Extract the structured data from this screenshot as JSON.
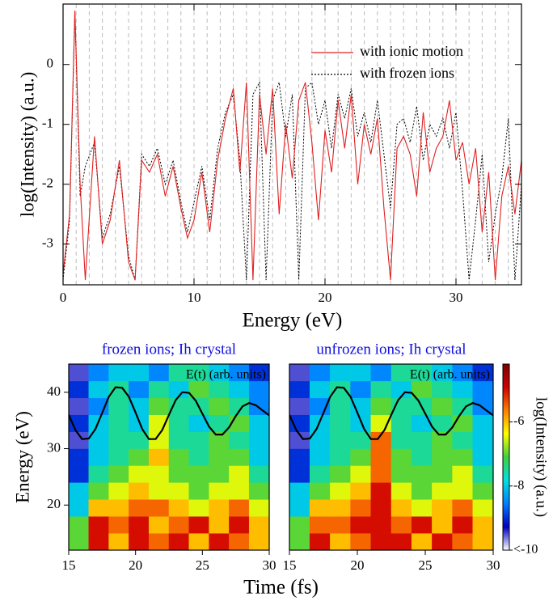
{
  "chart_data": [
    {
      "type": "line",
      "ylabel": "log(Intensity) (a.u.)",
      "xlabel": "Energy (eV)",
      "xlim": [
        0,
        35
      ],
      "ylim": [
        -3.68,
        1.01
      ],
      "xticks": [
        0,
        10,
        20,
        30
      ],
      "yticks": [
        -3,
        -2,
        -1,
        0
      ],
      "xgrid": [
        1,
        2,
        3,
        4,
        5,
        6,
        7,
        8,
        9,
        10,
        11,
        12,
        13,
        14,
        15,
        16,
        17,
        18,
        19,
        20,
        21,
        22,
        23,
        24,
        25,
        26,
        27,
        28,
        29,
        30,
        31,
        32,
        33,
        34
      ],
      "legend": "upper right",
      "x": [
        0,
        0.5,
        0.9,
        1.3,
        1.7,
        2.4,
        3,
        3.6,
        4.3,
        5,
        5.5,
        6,
        6.6,
        7.2,
        7.8,
        8.4,
        9,
        9.5,
        10,
        10.6,
        11.2,
        11.8,
        12.4,
        13,
        13.5,
        14,
        14.5,
        15,
        15.5,
        16,
        16.5,
        17,
        17.5,
        18,
        18.5,
        19,
        19.5,
        20,
        20.5,
        21,
        21.5,
        22,
        22.5,
        23,
        23.5,
        24,
        24.5,
        25,
        25.5,
        26,
        26.5,
        27,
        27.5,
        28,
        28.5,
        29,
        29.5,
        30,
        30.5,
        31,
        31.5,
        32,
        32.5,
        33,
        33.5,
        34,
        34.5,
        35
      ],
      "series": [
        {
          "name": "with ionic motion",
          "color": "#e02020",
          "dash": "none",
          "values": [
            -3.5,
            -2.5,
            0.9,
            -2.0,
            -3.6,
            -1.2,
            -3.0,
            -2.6,
            -1.6,
            -3.3,
            -3.6,
            -1.6,
            -1.8,
            -1.5,
            -2.2,
            -1.7,
            -2.4,
            -2.9,
            -2.6,
            -1.8,
            -2.8,
            -1.6,
            -0.9,
            -0.4,
            -1.8,
            -0.3,
            -3.6,
            -0.5,
            -1.5,
            -0.4,
            -2.5,
            -1.0,
            -1.9,
            -0.6,
            -0.3,
            -1.3,
            -2.6,
            -1.1,
            -1.8,
            -0.6,
            -1.4,
            -0.5,
            -2.0,
            -1.0,
            -1.5,
            -0.9,
            -2.4,
            -3.6,
            -1.4,
            -1.2,
            -1.5,
            -2.2,
            -0.8,
            -1.8,
            -1.4,
            -1.2,
            -0.6,
            -1.6,
            -1.3,
            -2.0,
            -1.4,
            -2.8,
            -1.8,
            -3.6,
            -2.2,
            -1.7,
            -2.5,
            -1.6
          ]
        },
        {
          "name": "with frozen ions",
          "color": "#000000",
          "dash": "2 2",
          "values": [
            -3.6,
            -2.6,
            0.85,
            -2.2,
            -1.7,
            -1.3,
            -2.9,
            -2.5,
            -1.7,
            -3.2,
            -3.6,
            -1.5,
            -1.7,
            -1.4,
            -2.0,
            -1.6,
            -2.3,
            -2.8,
            -2.3,
            -1.7,
            -2.6,
            -1.4,
            -0.8,
            -0.5,
            -1.6,
            -3.6,
            -0.5,
            -0.3,
            -3.6,
            -0.6,
            -0.3,
            -1.2,
            -0.5,
            -3.6,
            -0.4,
            -0.3,
            -1.0,
            -0.6,
            -1.4,
            -0.5,
            -0.9,
            -0.4,
            -1.2,
            -0.8,
            -1.3,
            -0.6,
            -1.5,
            -2.4,
            -1.0,
            -0.9,
            -1.3,
            -0.7,
            -1.6,
            -1.0,
            -1.2,
            -0.9,
            -1.4,
            -0.8,
            -2.1,
            -3.6,
            -2.6,
            -1.5,
            -3.3,
            -2.5,
            -1.9,
            -0.9,
            -3.6,
            -2.0
          ]
        }
      ]
    },
    {
      "type": "heatmap",
      "title": "frozen ions; Ih crystal",
      "xlabel": "Time (fs)",
      "ylabel": "Energy (eV)",
      "xlim": [
        15,
        30
      ],
      "ylim": [
        12,
        45
      ],
      "xticks": [
        15,
        20,
        25,
        30
      ],
      "yticks": [
        20,
        30,
        40
      ],
      "xbins": [
        15,
        16.5,
        18,
        19.5,
        21,
        22.5,
        24,
        25.5,
        27,
        28.5,
        30
      ],
      "ybins": [
        12,
        15,
        18,
        21,
        24,
        27,
        30,
        33,
        36,
        39,
        42,
        45
      ],
      "z": [
        [
          -7,
          -5,
          -6,
          -5,
          -5.5,
          -5,
          -6,
          -5,
          -5.5,
          -6
        ],
        [
          -7,
          -5,
          -5.5,
          -5,
          -6,
          -5.5,
          -5,
          -6,
          -5,
          -6
        ],
        [
          -8,
          -6,
          -6,
          -5.5,
          -5.5,
          -6,
          -6.5,
          -6,
          -5.5,
          -6.5
        ],
        [
          -8,
          -7,
          -6.5,
          -6,
          -6.5,
          -6.5,
          -7,
          -6.5,
          -6.5,
          -7
        ],
        [
          -9,
          -7.5,
          -7,
          -6.5,
          -6.5,
          -7,
          -7,
          -7,
          -6.5,
          -7.5
        ],
        [
          -9,
          -8,
          -7.5,
          -7,
          -6,
          -7,
          -7.5,
          -7,
          -7,
          -8
        ],
        [
          -9.5,
          -8,
          -7.5,
          -7.5,
          -6.5,
          -7.5,
          -7.5,
          -7,
          -7.5,
          -8
        ],
        [
          -9,
          -8,
          -7.5,
          -8,
          -6.5,
          -7.5,
          -8,
          -7.5,
          -7,
          -8
        ],
        [
          -9.5,
          -8.5,
          -7.5,
          -8,
          -7,
          -7.5,
          -7.5,
          -7,
          -7.5,
          -8.5
        ],
        [
          -9,
          -8,
          -7.5,
          -8.5,
          -7.5,
          -8,
          -7,
          -7.5,
          -8,
          -8.5
        ],
        [
          -9.5,
          -8.5,
          -8,
          -8,
          -8.5,
          -7.5,
          -7.5,
          -8,
          -8.5,
          -9
        ]
      ],
      "curve": {
        "name": "E(t) (arb. units)",
        "color": "#000000",
        "x": [
          15,
          15.5,
          16,
          16.5,
          17,
          17.5,
          18,
          18.5,
          19,
          19.5,
          20,
          20.5,
          21,
          21.5,
          22,
          22.5,
          23,
          23.5,
          24,
          24.5,
          25,
          25.5,
          26,
          26.5,
          27,
          27.5,
          28,
          28.5,
          29,
          29.5,
          30
        ],
        "values": [
          36,
          33.3,
          31.7,
          31.8,
          33.5,
          36.3,
          39.2,
          40.9,
          40.8,
          39.2,
          36.4,
          33.5,
          31.7,
          31.7,
          33.3,
          36,
          38.6,
          40,
          39.9,
          38.5,
          36.2,
          33.9,
          32.5,
          32.5,
          33.8,
          35.8,
          37.5,
          38.1,
          37.7,
          36.8,
          35.9
        ]
      }
    },
    {
      "type": "heatmap",
      "title": "unfrozen ions; Ih crystal",
      "xlim": [
        15,
        30
      ],
      "ylim": [
        12,
        45
      ],
      "xticks": [
        15,
        20,
        25,
        30
      ],
      "xbins": [
        15,
        16.5,
        18,
        19.5,
        21,
        22.5,
        24,
        25.5,
        27,
        28.5,
        30
      ],
      "ybins": [
        12,
        15,
        18,
        21,
        24,
        27,
        30,
        33,
        36,
        39,
        42,
        45
      ],
      "z": [
        [
          -7,
          -5,
          -6,
          -5.5,
          -5,
          -5,
          -6,
          -5,
          -5.5,
          -6
        ],
        [
          -7,
          -5.5,
          -5.5,
          -5,
          -5,
          -5.5,
          -5,
          -6,
          -5,
          -6
        ],
        [
          -8,
          -6,
          -6,
          -5.5,
          -5,
          -6,
          -6.5,
          -6,
          -5.5,
          -6.5
        ],
        [
          -8,
          -7,
          -6.5,
          -6,
          -5,
          -6.5,
          -7,
          -6.5,
          -6.5,
          -7
        ],
        [
          -9,
          -7.5,
          -7,
          -6.5,
          -5.5,
          -7,
          -7,
          -7,
          -6.5,
          -7.5
        ],
        [
          -9,
          -8,
          -7.5,
          -7,
          -5.5,
          -7,
          -7.5,
          -7,
          -7,
          -8
        ],
        [
          -9.5,
          -8,
          -7.5,
          -7.5,
          -5.5,
          -7.5,
          -7.5,
          -7,
          -7.5,
          -8
        ],
        [
          -9,
          -8,
          -7.5,
          -8,
          -6.5,
          -7.5,
          -8,
          -7.5,
          -7,
          -8
        ],
        [
          -9.5,
          -8.5,
          -7.5,
          -8,
          -7,
          -7.5,
          -7.5,
          -7,
          -7.5,
          -8.5
        ],
        [
          -9,
          -8,
          -7.5,
          -8.5,
          -7.5,
          -8,
          -7,
          -7.5,
          -8,
          -8.5
        ],
        [
          -9.5,
          -8.5,
          -8,
          -8,
          -8.5,
          -7.5,
          -7.5,
          -8,
          -8.5,
          -9
        ]
      ],
      "curve": {
        "name": "E(t) (arb. units)",
        "color": "#000000",
        "x": [
          15,
          15.5,
          16,
          16.5,
          17,
          17.5,
          18,
          18.5,
          19,
          19.5,
          20,
          20.5,
          21,
          21.5,
          22,
          22.5,
          23,
          23.5,
          24,
          24.5,
          25,
          25.5,
          26,
          26.5,
          27,
          27.5,
          28,
          28.5,
          29,
          29.5,
          30
        ],
        "values": [
          36,
          33.3,
          31.7,
          31.8,
          33.5,
          36.3,
          39.2,
          40.9,
          40.8,
          39.2,
          36.4,
          33.5,
          31.7,
          31.7,
          33.3,
          36,
          38.6,
          40,
          39.9,
          38.5,
          36.2,
          33.9,
          32.5,
          32.5,
          33.8,
          35.8,
          37.5,
          38.1,
          37.7,
          36.8,
          35.9
        ]
      },
      "colorbar": {
        "label": "log(Intensity) (a.u.)",
        "lim": [
          -10,
          -4.2
        ],
        "ticks": [
          -6,
          -8,
          {
            "value": -10,
            "label": "<-10"
          }
        ],
        "colormap": [
          "#ffffff",
          "#0000c0",
          "#0080ff",
          "#00e0e0",
          "#40d040",
          "#ffff00",
          "#ff8000",
          "#d00000",
          "#800000"
        ]
      }
    }
  ]
}
